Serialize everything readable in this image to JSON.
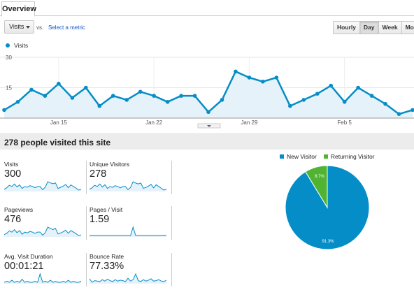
{
  "tabs": {
    "overview": "Overview"
  },
  "controls": {
    "metric": "Visits",
    "vs": "vs.",
    "select_metric": "Select a metric",
    "granularity": [
      "Hourly",
      "Day",
      "Week",
      "Month"
    ],
    "granularity_selected": "Day"
  },
  "colors": {
    "visits_line": "#058dc7",
    "visits_fill": "#e6f2f9",
    "new_visitor": "#058dc7",
    "returning_visitor": "#50b432"
  },
  "chart_data": [
    {
      "type": "area",
      "series": [
        {
          "name": "Visits",
          "values": [
            4,
            8,
            14,
            11,
            17,
            10,
            15,
            6,
            11,
            9,
            13,
            11,
            8,
            11,
            11,
            3,
            9,
            23,
            20,
            18,
            20,
            6,
            9,
            12,
            16,
            8,
            15,
            11,
            7,
            2,
            4
          ]
        }
      ],
      "x_labels": [
        "Jan 15",
        "Jan 22",
        "Jan 29",
        "Feb 5"
      ],
      "x_label_positions": [
        4,
        11,
        18,
        25
      ],
      "y_ticks": [
        15,
        30
      ],
      "ylim": [
        0,
        30
      ],
      "grid": true
    },
    {
      "type": "pie",
      "series": [
        {
          "name": "New Visitor",
          "value": 91.3,
          "label": "91.3%"
        },
        {
          "name": "Returning Visitor",
          "value": 8.7,
          "label": "8.7%"
        }
      ]
    }
  ],
  "summary": {
    "title": "278 people visited this site",
    "tiles": [
      {
        "label": "Visits",
        "value": "300",
        "spark": [
          4,
          8,
          14,
          11,
          17,
          10,
          15,
          6,
          11,
          9,
          13,
          11,
          8,
          11,
          11,
          3,
          9,
          23,
          20,
          18,
          20,
          6,
          9,
          12,
          16,
          8,
          15,
          11,
          7,
          2,
          4
        ]
      },
      {
        "label": "Unique Visitors",
        "value": "278",
        "spark": [
          4,
          7,
          13,
          10,
          16,
          9,
          14,
          6,
          10,
          8,
          12,
          10,
          7,
          10,
          10,
          3,
          8,
          21,
          18,
          16,
          18,
          6,
          8,
          11,
          15,
          7,
          14,
          10,
          6,
          2,
          4
        ]
      },
      {
        "label": "Pageviews",
        "value": "476",
        "spark": [
          6,
          10,
          18,
          14,
          22,
          12,
          19,
          7,
          14,
          11,
          16,
          14,
          10,
          14,
          14,
          4,
          12,
          30,
          26,
          22,
          26,
          8,
          11,
          15,
          20,
          10,
          19,
          14,
          9,
          3,
          5
        ]
      },
      {
        "label": "Pages / Visit",
        "value": "1.59",
        "spark": [
          1.3,
          1.3,
          1.3,
          1.3,
          1.3,
          1.3,
          1.3,
          1.3,
          1.3,
          1.3,
          1.3,
          1.3,
          1.3,
          1.3,
          1.3,
          1.3,
          1.3,
          4,
          1.3,
          1.3,
          1.3,
          1.3,
          1.3,
          1.3,
          1.3,
          1.3,
          1.3,
          1.3,
          1.3,
          1.4,
          1.3
        ]
      },
      {
        "label": "Avg. Visit Duration",
        "value": "00:01:21",
        "spark": [
          1,
          2,
          1,
          3,
          1,
          2,
          1,
          4,
          1,
          2,
          1,
          1,
          2,
          1,
          9,
          1,
          2,
          1,
          3,
          1,
          2,
          1,
          1,
          2,
          1,
          3,
          1,
          2,
          1,
          1,
          2
        ]
      },
      {
        "label": "Bounce Rate",
        "value": "77.33%",
        "spark": [
          70,
          55,
          62,
          60,
          58,
          66,
          60,
          68,
          62,
          58,
          66,
          60,
          64,
          62,
          58,
          72,
          60,
          66,
          90,
          62,
          58,
          66,
          60,
          64,
          70,
          60,
          62,
          66,
          60,
          58,
          64
        ]
      }
    ]
  }
}
